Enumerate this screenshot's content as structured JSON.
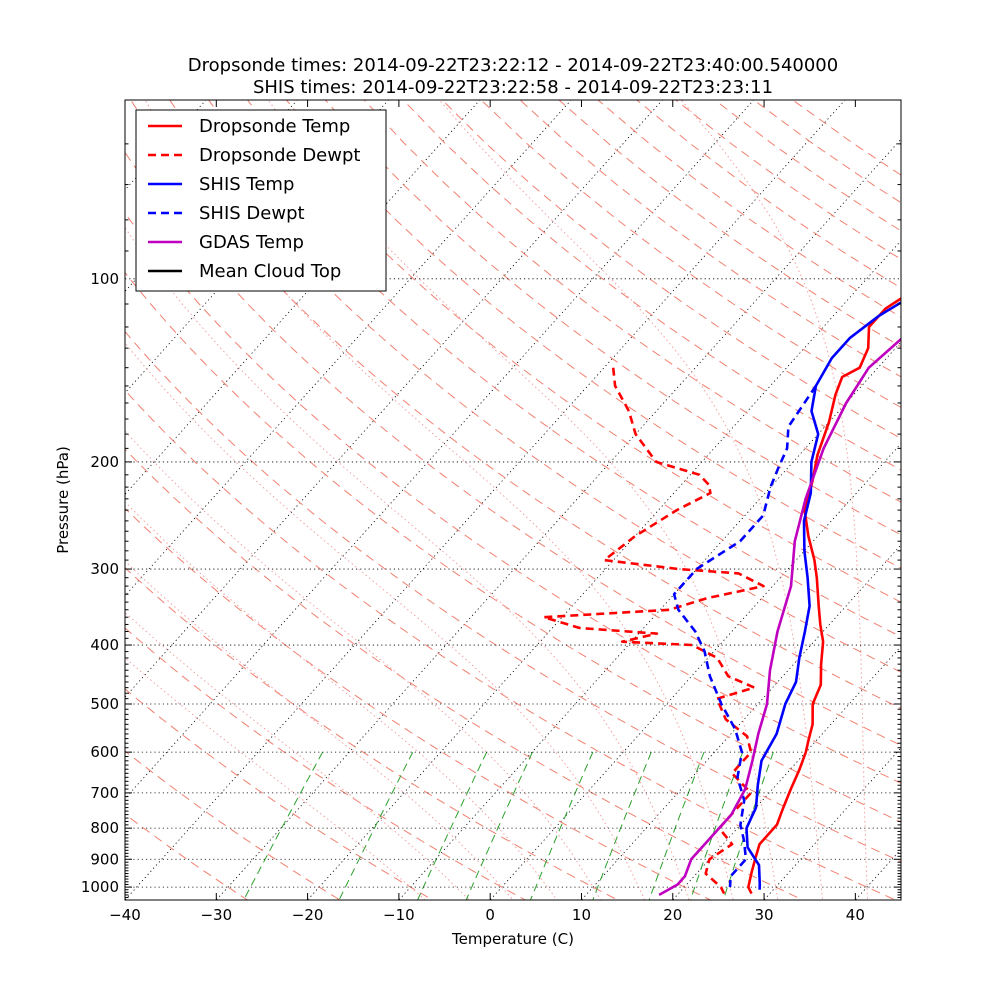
{
  "chart_data": {
    "type": "line",
    "title_lines": [
      "Dropsonde times: 2014-09-22T23:22:12 - 2014-09-22T23:40:00.540000",
      "SHIS times: 2014-09-22T23:22:58 - 2014-09-22T23:23:11"
    ],
    "xlabel": "Temperature (C)",
    "ylabel": "Pressure (hPa)",
    "x_ticks": [
      "−40",
      "−30",
      "−20",
      "−10",
      "0",
      "10",
      "20",
      "30",
      "40"
    ],
    "x_tick_values": [
      -40,
      -30,
      -20,
      -10,
      0,
      10,
      20,
      30,
      40
    ],
    "y_ticks": [
      "100",
      "200",
      "300",
      "400",
      "500",
      "600",
      "700",
      "800",
      "900",
      "1000"
    ],
    "y_tick_values": [
      100,
      200,
      300,
      400,
      500,
      600,
      700,
      800,
      900,
      1000
    ],
    "xlim": [
      -40,
      45
    ],
    "ylim_hpa": [
      1050,
      50
    ],
    "y_scale": "log",
    "skew": "skew-T log-p",
    "grid": true,
    "legend_position": "top-left",
    "series": [
      {
        "name": "Dropsonde Temp",
        "color": "#ff0000",
        "dash": "solid",
        "points": [
          [
            7.5,
            62
          ],
          [
            3,
            74
          ],
          [
            -4,
            88
          ],
          [
            -9,
            97
          ],
          [
            -10,
            101
          ],
          [
            -14,
            106
          ],
          [
            -15,
            112
          ],
          [
            -15,
            120
          ],
          [
            -13,
            130
          ],
          [
            -12,
            140
          ],
          [
            -13,
            145
          ],
          [
            -12,
            155
          ],
          [
            -10,
            172
          ],
          [
            -8,
            195
          ],
          [
            -6,
            215
          ],
          [
            -4,
            240
          ],
          [
            -1,
            265
          ],
          [
            2,
            290
          ],
          [
            4,
            310
          ],
          [
            7,
            345
          ],
          [
            9,
            370
          ],
          [
            11,
            395
          ],
          [
            13,
            430
          ],
          [
            15,
            465
          ],
          [
            16,
            500
          ],
          [
            18,
            540
          ],
          [
            19,
            570
          ],
          [
            20,
            600
          ],
          [
            21,
            640
          ],
          [
            22,
            690
          ],
          [
            23,
            740
          ],
          [
            24,
            790
          ],
          [
            24,
            850
          ],
          [
            25,
            900
          ],
          [
            26,
            950
          ],
          [
            27,
            1000
          ],
          [
            28,
            1025
          ]
        ]
      },
      {
        "name": "Dropsonde Dewpt",
        "color": "#ff0000",
        "dash": "dashed",
        "points": [
          [
            -39,
            140
          ],
          [
            -37,
            150
          ],
          [
            -33,
            165
          ],
          [
            -30,
            180
          ],
          [
            -25,
            200
          ],
          [
            -19,
            210
          ],
          [
            -17,
            218
          ],
          [
            -16,
            225
          ],
          [
            -18,
            240
          ],
          [
            -20,
            265
          ],
          [
            -21,
            290
          ],
          [
            -12,
            300
          ],
          [
            -5,
            305
          ],
          [
            -1,
            320
          ],
          [
            -6,
            335
          ],
          [
            -9,
            350
          ],
          [
            -22,
            360
          ],
          [
            -17,
            375
          ],
          [
            -8,
            383
          ],
          [
            -11,
            395
          ],
          [
            -3,
            400
          ],
          [
            1,
            420
          ],
          [
            4,
            450
          ],
          [
            8,
            470
          ],
          [
            5,
            490
          ],
          [
            8,
            530
          ],
          [
            12,
            565
          ],
          [
            14,
            600
          ],
          [
            14,
            650
          ],
          [
            18,
            700
          ],
          [
            18,
            750
          ],
          [
            18,
            800
          ],
          [
            21,
            850
          ],
          [
            20,
            900
          ],
          [
            21,
            950
          ],
          [
            24,
            1000
          ],
          [
            25,
            1025
          ]
        ]
      },
      {
        "name": "SHIS Temp",
        "color": "#0000ff",
        "dash": "solid",
        "points": [
          [
            9.5,
            50
          ],
          [
            4,
            65
          ],
          [
            -3,
            80
          ],
          [
            -9,
            93
          ],
          [
            -13,
            105
          ],
          [
            -15,
            115
          ],
          [
            -16,
            125
          ],
          [
            -16,
            135
          ],
          [
            -15,
            150
          ],
          [
            -13,
            165
          ],
          [
            -10,
            180
          ],
          [
            -8,
            200
          ],
          [
            -5,
            225
          ],
          [
            -3,
            250
          ],
          [
            0,
            280
          ],
          [
            3,
            310
          ],
          [
            6,
            345
          ],
          [
            8,
            380
          ],
          [
            10,
            420
          ],
          [
            12,
            460
          ],
          [
            13,
            500
          ],
          [
            15,
            560
          ],
          [
            16,
            620
          ],
          [
            18,
            680
          ],
          [
            20,
            740
          ],
          [
            21,
            800
          ],
          [
            23,
            860
          ],
          [
            26,
            920
          ],
          [
            28,
            990
          ],
          [
            28.5,
            1010
          ]
        ]
      },
      {
        "name": "SHIS Dewpt",
        "color": "#0000ff",
        "dash": "dashed",
        "points": [
          [
            -15,
            150
          ],
          [
            -14,
            175
          ],
          [
            -12,
            190
          ],
          [
            -11,
            205
          ],
          [
            -10,
            220
          ],
          [
            -8,
            245
          ],
          [
            -8,
            270
          ],
          [
            -10,
            300
          ],
          [
            -10,
            330
          ],
          [
            -8,
            350
          ],
          [
            -4,
            380
          ],
          [
            -1,
            410
          ],
          [
            2,
            450
          ],
          [
            6,
            500
          ],
          [
            10,
            550
          ],
          [
            13,
            600
          ],
          [
            15,
            660
          ],
          [
            18,
            720
          ],
          [
            20,
            790
          ],
          [
            22,
            840
          ],
          [
            24,
            900
          ],
          [
            24,
            960
          ],
          [
            25,
            1000
          ]
        ]
      },
      {
        "name": "GDAS Temp",
        "color": "#bf00bf",
        "dash": "solid",
        "points": [
          [
            10,
            50
          ],
          [
            2,
            66
          ],
          [
            -3,
            80
          ],
          [
            -7,
            93
          ],
          [
            -9,
            103
          ],
          [
            -10,
            120
          ],
          [
            -11,
            140
          ],
          [
            -10,
            160
          ],
          [
            -8,
            190
          ],
          [
            -5,
            230
          ],
          [
            -2,
            270
          ],
          [
            2,
            320
          ],
          [
            5,
            380
          ],
          [
            8,
            440
          ],
          [
            11,
            500
          ],
          [
            13,
            560
          ],
          [
            15,
            620
          ],
          [
            17,
            690
          ],
          [
            18,
            760
          ],
          [
            18,
            830
          ],
          [
            18,
            900
          ],
          [
            19,
            960
          ],
          [
            19,
            990
          ],
          [
            18,
            1030
          ]
        ]
      },
      {
        "name": "Mean Cloud Top",
        "color": "#000000",
        "dash": "solid",
        "points": []
      }
    ]
  }
}
